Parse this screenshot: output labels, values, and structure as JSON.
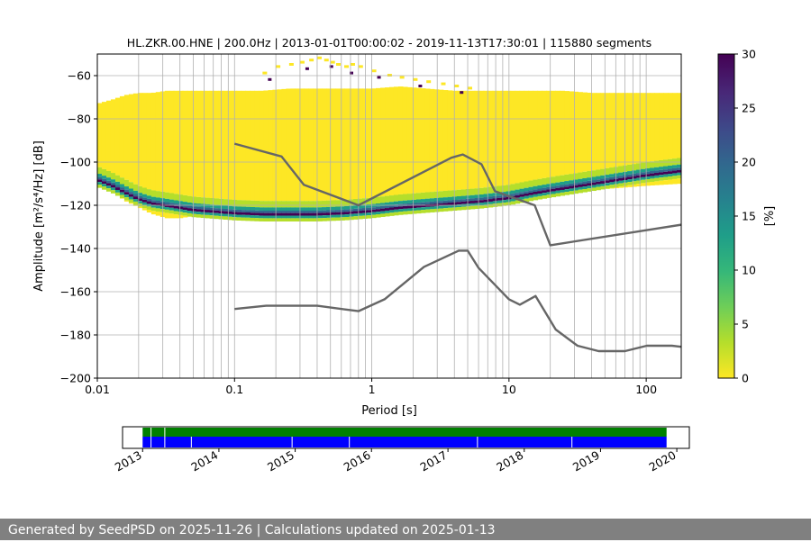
{
  "title": "HL.ZKR.00.HNE | 200.0Hz | 2013-01-01T00:00:02 - 2019-11-13T17:30:01 | 115880 segments",
  "footer": "Generated by SeedPSD on 2025-11-26 | Calculations updated on 2025-01-13",
  "colors": {
    "model_line": "#666666",
    "grid": "#b0b0b0",
    "availability_top": "#008000",
    "availability_bottom": "#0000ff",
    "colormap": [
      "#fde725",
      "#b5de2b",
      "#6ece58",
      "#35b779",
      "#1f9e89",
      "#26828e",
      "#31688e",
      "#3e4989",
      "#482878",
      "#440154"
    ]
  },
  "chart_data": [
    {
      "type": "heatmap",
      "xlabel": "Period [s]",
      "ylabel": "Amplitude [m²/s⁴/Hz] [dB]",
      "xscale": "log",
      "xlim": [
        0.01,
        180
      ],
      "ylim": [
        -200,
        -50
      ],
      "xticks": [
        0.01,
        0.1,
        1,
        10,
        100
      ],
      "xtick_labels": [
        "0.01",
        "0.1",
        "1",
        "10",
        "100"
      ],
      "yticks": [
        -200,
        -180,
        -160,
        -140,
        -120,
        -100,
        -80,
        -60
      ],
      "grid": true,
      "colorbar": {
        "label": "[%]",
        "min": 0,
        "max": 30,
        "ticks": [
          0,
          5,
          10,
          15,
          20,
          25,
          30
        ]
      },
      "psd_envelope": {
        "period": [
          0.01,
          0.013,
          0.016,
          0.02,
          0.025,
          0.032,
          0.04,
          0.05,
          0.063,
          0.08,
          0.1,
          0.16,
          0.25,
          0.4,
          0.63,
          1,
          1.6,
          2.5,
          4,
          6.3,
          10,
          16,
          25,
          40,
          63,
          100,
          180
        ],
        "upper_db": [
          -73,
          -71,
          -69,
          -68,
          -68,
          -67,
          -67,
          -67,
          -67,
          -67,
          -67,
          -67,
          -66,
          -66,
          -66,
          -66,
          -65,
          -66,
          -67,
          -67,
          -67,
          -67,
          -67,
          -68,
          -68,
          -68,
          -68
        ],
        "mode_db": [
          -108,
          -111,
          -114,
          -117,
          -119,
          -120,
          -121,
          -122,
          -122.5,
          -123,
          -123.5,
          -124,
          -124,
          -124,
          -123.5,
          -122.5,
          -121,
          -120,
          -119,
          -118,
          -116.5,
          -114,
          -112,
          -110,
          -108,
          -106,
          -104
        ],
        "lower_db": [
          -111,
          -114,
          -118,
          -121,
          -124,
          -126,
          -126,
          -125,
          -124,
          -124,
          -124.5,
          -125,
          -125,
          -125,
          -124.5,
          -124,
          -123,
          -122,
          -121,
          -119,
          -118,
          -116,
          -114,
          -113,
          -112,
          -111,
          -110
        ]
      },
      "outliers": {
        "period": [
          0.16,
          0.2,
          0.25,
          0.3,
          0.35,
          0.4,
          0.45,
          0.5,
          0.55,
          0.63,
          0.7,
          0.8,
          1,
          1.3,
          1.6,
          2,
          2.5,
          3.2,
          4,
          5
        ],
        "db": [
          -59,
          -56,
          -55,
          -54,
          -53,
          -52,
          -53,
          -54,
          -55,
          -56,
          -55,
          -56,
          -58,
          -60,
          -61,
          -62,
          -63,
          -64,
          -65,
          -66
        ]
      },
      "series": [
        {
          "name": "",
          "x": [
            0.1,
            0.22,
            0.32,
            0.8,
            3.8,
            4.6,
            6.3,
            7.9,
            15.4,
            20,
            180
          ],
          "y": [
            -91.5,
            -97.4,
            -110.5,
            -120,
            -98,
            -96.5,
            -101,
            -113.5,
            -120,
            -138.5,
            -129
          ]
        },
        {
          "name": "",
          "x": [
            0.1,
            0.17,
            0.4,
            0.8,
            1.24,
            2.4,
            4.3,
            5,
            6,
            10,
            12,
            15.6,
            21.9,
            31.6,
            45,
            70,
            101,
            154,
            180
          ],
          "y": [
            -168,
            -166.5,
            -166.5,
            -169,
            -163.5,
            -148.5,
            -141,
            -141,
            -149,
            -163.5,
            -166,
            -162,
            -177.5,
            -185,
            -187.5,
            -187.5,
            -185,
            -185,
            -185.5
          ]
        }
      ]
    },
    {
      "type": "timeline",
      "xlim": [
        "2012-09-27",
        "2020-03-01"
      ],
      "xtick_labels": [
        "2013",
        "2014",
        "2015",
        "2016",
        "2017",
        "2018",
        "2019",
        "2020"
      ],
      "top_bar": {
        "start": "2013-01-01",
        "end": "2019-11-13",
        "gaps": [
          "2013-02-08",
          "2013-04-15"
        ]
      },
      "bottom_bar": {
        "start": "2013-01-01",
        "end": "2019-11-13",
        "gaps": [
          "2013-02-08",
          "2013-04-15",
          "2013-08-20",
          "2014-12-15",
          "2015-09-15",
          "2017-05-20",
          "2018-08-15"
        ]
      }
    }
  ]
}
